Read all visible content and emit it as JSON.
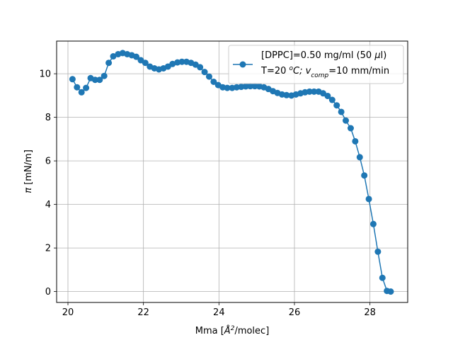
{
  "chart_data": {
    "type": "line",
    "title": "",
    "xlabel": {
      "pre": "Mma [",
      "sym": "Å",
      "sup": "2",
      "post": "/molec]"
    },
    "ylabel": {
      "sym": "π",
      "post": " [mN/m]"
    },
    "xlim": [
      19.7,
      29.0
    ],
    "ylim": [
      -0.5,
      11.5
    ],
    "xticks": [
      20,
      22,
      24,
      26,
      28
    ],
    "yticks": [
      0,
      2,
      4,
      6,
      8,
      10
    ],
    "grid": true,
    "legend_position": "top-right",
    "legend": {
      "line1_pre": "[DPPC]=0.50 mg/ml (50 ",
      "line1_sym": "μ",
      "line1_post": "l)",
      "line2_pre": "T=20 ",
      "line2_sup": "o",
      "line2_mid1": "C; ",
      "line2_v": "v",
      "line2_sub": "comp",
      "line2_post": "=10 mm/min"
    },
    "colors": {
      "series": "#1f77b4",
      "grid": "#b0b0b0"
    },
    "series": [
      {
        "x": [
          20.12,
          20.24,
          20.36,
          20.48,
          20.6,
          20.72,
          20.84,
          20.96,
          21.08,
          21.2,
          21.33,
          21.45,
          21.57,
          21.69,
          21.81,
          21.93,
          22.05,
          22.17,
          22.29,
          22.41,
          22.53,
          22.65,
          22.77,
          22.9,
          23.02,
          23.14,
          23.26,
          23.38,
          23.5,
          23.62,
          23.74,
          23.86,
          23.98,
          24.1,
          24.22,
          24.35,
          24.47,
          24.59,
          24.71,
          24.83,
          24.95,
          25.07,
          25.19,
          25.31,
          25.43,
          25.55,
          25.67,
          25.79,
          25.92,
          26.04,
          26.16,
          26.28,
          26.4,
          26.52,
          26.64,
          26.76,
          26.88,
          27.0,
          27.12,
          27.24,
          27.36,
          27.49,
          27.61,
          27.73,
          27.85,
          27.97,
          28.09,
          28.21,
          28.33,
          28.45,
          28.55
        ],
        "y": [
          9.75,
          9.38,
          9.15,
          9.35,
          9.8,
          9.72,
          9.72,
          9.9,
          10.5,
          10.8,
          10.9,
          10.95,
          10.9,
          10.85,
          10.78,
          10.62,
          10.5,
          10.33,
          10.25,
          10.2,
          10.25,
          10.33,
          10.45,
          10.52,
          10.55,
          10.55,
          10.5,
          10.42,
          10.3,
          10.08,
          9.87,
          9.63,
          9.48,
          9.38,
          9.35,
          9.35,
          9.38,
          9.4,
          9.42,
          9.43,
          9.43,
          9.42,
          9.38,
          9.3,
          9.2,
          9.12,
          9.05,
          9.02,
          9.0,
          9.05,
          9.1,
          9.15,
          9.18,
          9.18,
          9.18,
          9.1,
          8.98,
          8.8,
          8.55,
          8.25,
          7.85,
          7.5,
          6.9,
          6.17,
          5.33,
          4.25,
          3.1,
          1.83,
          0.63,
          0.03,
          0.0
        ]
      }
    ]
  }
}
